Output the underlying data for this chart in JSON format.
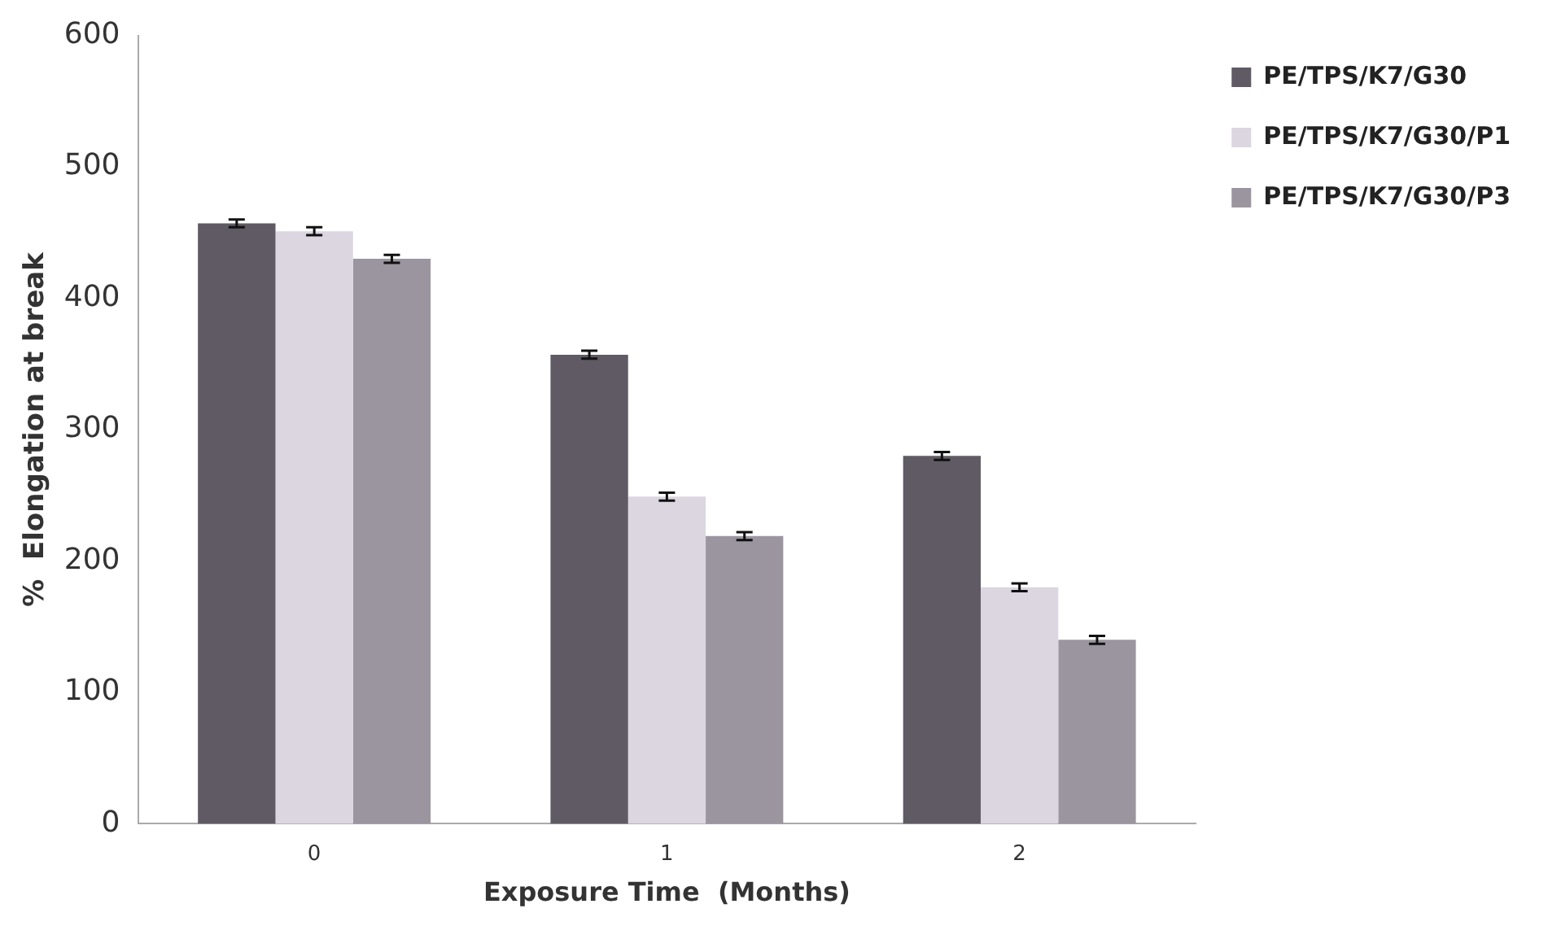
{
  "chart_data": {
    "type": "bar",
    "xlabel": "Exposure Time  (Months)",
    "ylabel": "%  Elongation at break",
    "categories": [
      "0",
      "1",
      "2"
    ],
    "series": [
      {
        "name": "PE/TPS/K7/G30",
        "color": "#5f5a63",
        "values": [
          457,
          357,
          280
        ],
        "errors": [
          3,
          3,
          3
        ]
      },
      {
        "name": "PE/TPS/K7/G30/P1",
        "color": "#dcd6e0",
        "values": [
          451,
          249,
          180
        ],
        "errors": [
          3,
          3,
          3
        ]
      },
      {
        "name": "PE/TPS/K7/G30/P3",
        "color": "#9a959e",
        "values": [
          430,
          219,
          140
        ],
        "errors": [
          3,
          3,
          3
        ]
      }
    ],
    "ylim": [
      0,
      600
    ],
    "yticks": [
      0,
      100,
      200,
      300,
      400,
      500,
      600
    ],
    "grid": false,
    "legend": "top right"
  }
}
